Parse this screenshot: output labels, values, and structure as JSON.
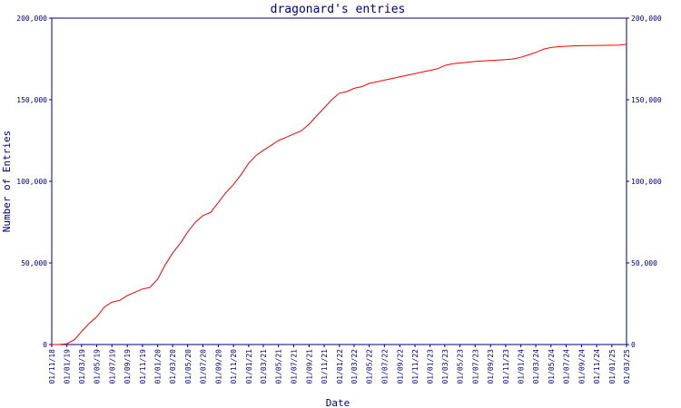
{
  "chart_data": {
    "type": "line",
    "title": "dragonard's entries",
    "xlabel": "Date",
    "ylabel": "Number of Entries",
    "ylim": [
      0,
      200000
    ],
    "y_ticks": [
      0,
      50000,
      100000,
      150000,
      200000
    ],
    "y_tick_labels": [
      "0",
      "50,000",
      "100,000",
      "150,000",
      "200,000"
    ],
    "right_axis_mirrors_left": true,
    "grid": false,
    "legend": "none",
    "x_tick_labels": [
      "01/11/18",
      "01/01/19",
      "01/03/19",
      "01/05/19",
      "01/07/19",
      "01/09/19",
      "01/11/19",
      "01/01/20",
      "01/03/20",
      "01/05/20",
      "01/07/20",
      "01/09/20",
      "01/11/20",
      "01/01/21",
      "01/03/21",
      "01/05/21",
      "01/07/21",
      "01/09/21",
      "01/11/21",
      "01/01/22",
      "01/03/22",
      "01/05/22",
      "01/07/22",
      "01/09/22",
      "01/11/22",
      "01/01/23",
      "01/03/23",
      "01/05/23",
      "01/07/23",
      "01/09/23",
      "01/11/23",
      "01/01/24",
      "01/03/24",
      "01/05/24",
      "01/07/24",
      "01/09/24",
      "01/11/24",
      "01/01/25",
      "01/03/25"
    ],
    "series": [
      {
        "color": "#ff0000",
        "x": [
          "2018-11-01",
          "2018-12-01",
          "2019-01-01",
          "2019-02-01",
          "2019-03-01",
          "2019-04-01",
          "2019-05-01",
          "2019-06-01",
          "2019-07-01",
          "2019-08-01",
          "2019-09-01",
          "2019-10-01",
          "2019-11-01",
          "2019-12-01",
          "2020-01-01",
          "2020-02-01",
          "2020-03-01",
          "2020-04-01",
          "2020-05-01",
          "2020-06-01",
          "2020-07-01",
          "2020-08-01",
          "2020-09-01",
          "2020-10-01",
          "2020-11-01",
          "2020-12-01",
          "2021-01-01",
          "2021-02-01",
          "2021-03-01",
          "2021-04-01",
          "2021-05-01",
          "2021-06-01",
          "2021-07-01",
          "2021-08-01",
          "2021-09-01",
          "2021-10-01",
          "2021-11-01",
          "2021-12-01",
          "2022-01-01",
          "2022-02-01",
          "2022-03-01",
          "2022-04-01",
          "2022-05-01",
          "2022-06-01",
          "2022-07-01",
          "2022-08-01",
          "2022-09-01",
          "2022-10-01",
          "2022-11-01",
          "2022-12-01",
          "2023-01-01",
          "2023-02-01",
          "2023-03-01",
          "2023-04-01",
          "2023-05-01",
          "2023-06-01",
          "2023-07-01",
          "2023-08-01",
          "2023-09-01",
          "2023-10-01",
          "2023-11-01",
          "2023-12-01",
          "2024-01-01",
          "2024-02-01",
          "2024-03-01",
          "2024-04-01",
          "2024-05-01",
          "2024-06-01",
          "2024-07-01",
          "2024-08-01",
          "2024-09-01",
          "2024-10-01",
          "2024-11-01",
          "2024-12-01",
          "2025-01-01",
          "2025-02-01",
          "2025-03-01"
        ],
        "values": [
          0,
          0,
          500,
          3000,
          8000,
          13000,
          17000,
          23000,
          26000,
          27000,
          30000,
          32000,
          34000,
          35000,
          40000,
          49000,
          56000,
          62000,
          69000,
          75000,
          79000,
          81000,
          87000,
          93000,
          98000,
          104000,
          111000,
          116000,
          119000,
          122000,
          125000,
          127000,
          129000,
          131000,
          135000,
          140000,
          145000,
          150000,
          154000,
          155000,
          157000,
          158000,
          160000,
          161000,
          162000,
          163000,
          164000,
          165000,
          166000,
          167000,
          168000,
          169000,
          171000,
          172000,
          172500,
          173000,
          173500,
          173800,
          174000,
          174300,
          174600,
          175000,
          176000,
          177500,
          179000,
          181000,
          182000,
          182500,
          182800,
          183000,
          183100,
          183200,
          183300,
          183300,
          183400,
          183500,
          184000
        ]
      }
    ]
  }
}
